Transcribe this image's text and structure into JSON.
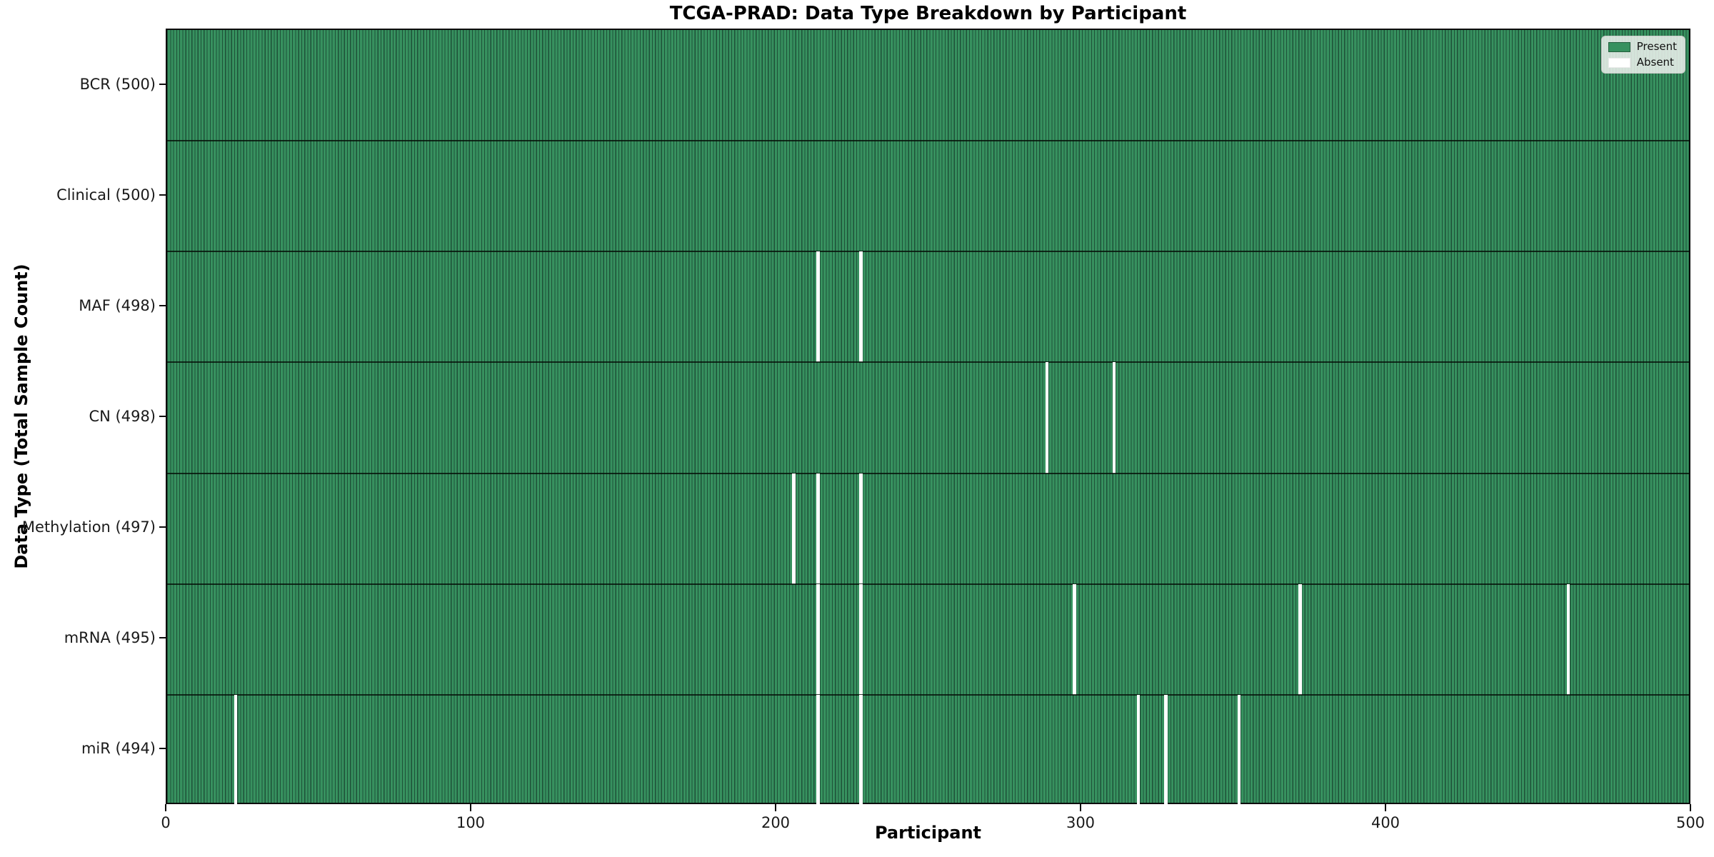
{
  "figure": {
    "title": "TCGA-PRAD: Data Type Breakdown by Participant",
    "xlabel": "Participant",
    "ylabel": "Data Type (Total Sample Count)"
  },
  "chart_data": {
    "type": "heatmap",
    "title": "TCGA-PRAD: Data Type Breakdown by Participant",
    "xlabel": "Participant",
    "ylabel": "Data Type (Total Sample Count)",
    "x_range": [
      0,
      500
    ],
    "x_ticks": [
      0,
      100,
      200,
      300,
      400,
      500
    ],
    "n_participants": 500,
    "value_encoding": {
      "present": 1,
      "absent": 0
    },
    "rows": [
      {
        "label": "BCR (500)",
        "data_type": "BCR",
        "total": 500,
        "absent_participants": []
      },
      {
        "label": "Clinical (500)",
        "data_type": "Clinical",
        "total": 500,
        "absent_participants": []
      },
      {
        "label": "MAF (498)",
        "data_type": "MAF",
        "total": 498,
        "absent_participants": [
          213,
          227
        ]
      },
      {
        "label": "CN (498)",
        "data_type": "CN",
        "total": 498,
        "absent_participants": [
          288,
          310
        ]
      },
      {
        "label": "Methylation (497)",
        "data_type": "Methylation",
        "total": 497,
        "absent_participants": [
          205,
          213,
          227
        ]
      },
      {
        "label": "mRNA (495)",
        "data_type": "mRNA",
        "total": 495,
        "absent_participants": [
          213,
          227,
          297,
          371,
          459
        ]
      },
      {
        "label": "miR (494)",
        "data_type": "miR",
        "total": 494,
        "absent_participants": [
          22,
          213,
          227,
          318,
          327,
          351
        ]
      }
    ],
    "legend": {
      "position": "upper right",
      "entries": [
        {
          "label": "Present",
          "swatch": "present",
          "color": "#37915f"
        },
        {
          "label": "Absent",
          "swatch": "absent",
          "color": "#ffffff"
        }
      ]
    },
    "colors": {
      "present_fill": "#37915f",
      "bar_edge": "#1e5138",
      "row_divider": "#0f1f14",
      "axis": "#0d0d0d",
      "legend_border": "#c9ccc9"
    },
    "grid": false
  }
}
